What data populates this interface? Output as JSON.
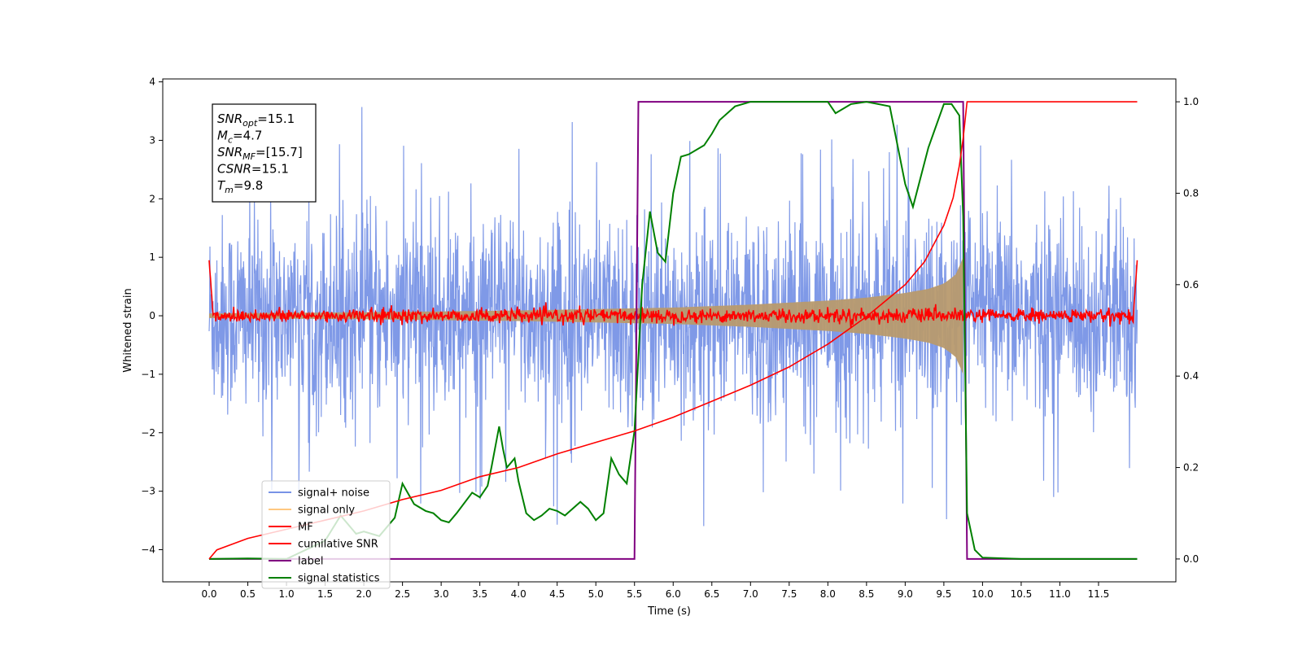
{
  "chart_data": {
    "type": "line",
    "xlabel": "Time (s)",
    "ylabel": "Whitened strain",
    "xlim": [
      -0.6,
      12.5
    ],
    "ylim": [
      -4.55,
      4.05
    ],
    "ylim_right": [
      -0.05,
      1.05
    ],
    "x_ticks": [
      "0.0",
      "0.5",
      "1.0",
      "1.5",
      "2.0",
      "2.5",
      "3.0",
      "3.5",
      "4.0",
      "4.5",
      "5.0",
      "5.5",
      "6.0",
      "6.5",
      "7.0",
      "7.5",
      "8.0",
      "8.5",
      "9.0",
      "9.5",
      "10.0",
      "10.5",
      "11.0",
      "11.5"
    ],
    "y_ticks_left": [
      "4",
      "3",
      "2",
      "1",
      "0",
      "−1",
      "−2",
      "−3",
      "−4"
    ],
    "y_ticks_right": [
      "1.0",
      "0.8",
      "0.6",
      "0.4",
      "0.2",
      "0.0"
    ],
    "legend_position": "lower-left",
    "annotation_box": {
      "lines": [
        {
          "sym": "SNR",
          "sub": "opt",
          "value": "=15.1"
        },
        {
          "sym": "M",
          "sub": "c",
          "value": "=4.7"
        },
        {
          "sym": "SNR",
          "sub": "MF",
          "value": "=[15.7]"
        },
        {
          "sym": "CSNR",
          "sub": "",
          "value": "=15.1"
        },
        {
          "sym": "T",
          "sub": "m",
          "value": "=9.8"
        }
      ]
    },
    "series": [
      {
        "name": "signal+ noise",
        "color": "#7893e6",
        "axis": "left",
        "x_range": [
          0,
          12
        ],
        "envelope_typical": 1.6,
        "peaks_max": 3.6,
        "peaks_min": -4.1
      },
      {
        "name": "signal only",
        "color": "#ffc880",
        "axis": "left",
        "x": [
          0,
          2,
          4,
          6,
          7,
          8,
          8.5,
          9,
          9.3,
          9.5,
          9.65,
          9.75,
          9.78
        ],
        "amplitude": [
          0.04,
          0.06,
          0.09,
          0.14,
          0.19,
          0.26,
          0.31,
          0.39,
          0.46,
          0.55,
          0.7,
          1.0,
          0.0
        ]
      },
      {
        "name": "MF",
        "color": "#ff0000",
        "axis": "left",
        "x_range": [
          0,
          12
        ],
        "baseline": 0.0,
        "noise": 0.06,
        "edge_peak": 0.95
      },
      {
        "name": "cumilative SNR",
        "color": "#ff0000",
        "axis": "right",
        "x": [
          0,
          0.1,
          0.5,
          1,
          1.5,
          2,
          2.5,
          3,
          3.5,
          4,
          4.5,
          5,
          5.5,
          6,
          6.5,
          7,
          7.5,
          8,
          8.5,
          9,
          9.25,
          9.5,
          9.62,
          9.7,
          9.75,
          9.8,
          10,
          11,
          12
        ],
        "values": [
          0,
          0.02,
          0.045,
          0.065,
          0.085,
          0.105,
          0.13,
          0.15,
          0.18,
          0.2,
          0.23,
          0.255,
          0.28,
          0.31,
          0.345,
          0.38,
          0.42,
          0.47,
          0.53,
          0.6,
          0.65,
          0.73,
          0.79,
          0.86,
          0.92,
          1.0,
          1.0,
          1.0,
          1.0
        ]
      },
      {
        "name": "label",
        "color": "#800080",
        "axis": "right",
        "x": [
          0,
          5.5,
          5.55,
          9.75,
          9.8,
          12
        ],
        "values": [
          0,
          0,
          1,
          1,
          0,
          0
        ]
      },
      {
        "name": "signal statistics",
        "color": "#008000",
        "axis": "right",
        "x": [
          0,
          0.5,
          1.0,
          1.5,
          1.7,
          1.9,
          2.0,
          2.2,
          2.4,
          2.5,
          2.65,
          2.8,
          2.9,
          3.0,
          3.1,
          3.2,
          3.4,
          3.5,
          3.6,
          3.65,
          3.75,
          3.8,
          3.85,
          3.95,
          4.0,
          4.1,
          4.2,
          4.3,
          4.4,
          4.5,
          4.6,
          4.8,
          4.9,
          5.0,
          5.1,
          5.2,
          5.3,
          5.4,
          5.5,
          5.6,
          5.7,
          5.8,
          5.9,
          6.0,
          6.1,
          6.2,
          6.4,
          6.5,
          6.6,
          6.8,
          7.0,
          7.5,
          8.0,
          8.1,
          8.3,
          8.5,
          8.8,
          9.0,
          9.1,
          9.3,
          9.5,
          9.6,
          9.7,
          9.75,
          9.8,
          9.9,
          10.0,
          10.5,
          12
        ],
        "values": [
          0,
          0.001,
          0.0,
          0.04,
          0.095,
          0.055,
          0.06,
          0.05,
          0.09,
          0.165,
          0.12,
          0.105,
          0.1,
          0.085,
          0.08,
          0.1,
          0.145,
          0.135,
          0.16,
          0.2,
          0.29,
          0.24,
          0.2,
          0.22,
          0.17,
          0.1,
          0.085,
          0.095,
          0.11,
          0.105,
          0.095,
          0.125,
          0.11,
          0.085,
          0.1,
          0.22,
          0.185,
          0.165,
          0.28,
          0.6,
          0.76,
          0.67,
          0.65,
          0.8,
          0.88,
          0.885,
          0.905,
          0.93,
          0.96,
          0.99,
          1.0,
          1.0,
          1.0,
          0.975,
          0.995,
          1.0,
          0.99,
          0.82,
          0.77,
          0.9,
          0.995,
          0.995,
          0.97,
          0.75,
          0.1,
          0.02,
          0.003,
          0.0,
          0.0
        ]
      }
    ]
  }
}
